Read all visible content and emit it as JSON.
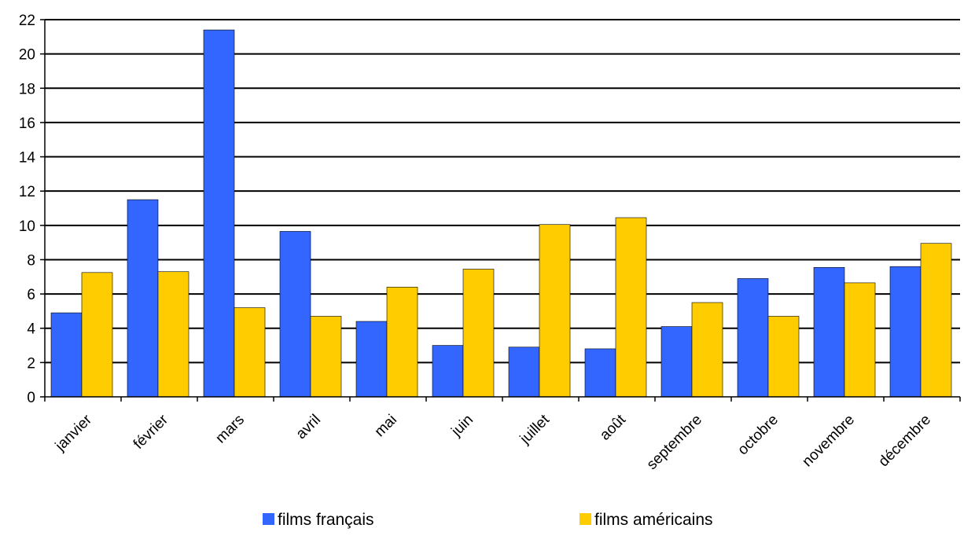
{
  "chart_data": {
    "type": "bar",
    "categories": [
      "janvier",
      "février",
      "mars",
      "avril",
      "mai",
      "juin",
      "juillet",
      "août",
      "septembre",
      "octobre",
      "novembre",
      "décembre"
    ],
    "series": [
      {
        "name": "films français",
        "color": "#3366ff",
        "values": [
          4.9,
          11.5,
          21.4,
          9.65,
          4.4,
          3.0,
          2.9,
          2.8,
          4.1,
          6.9,
          7.55,
          7.6
        ]
      },
      {
        "name": "films américains",
        "color": "#ffcc00",
        "values": [
          7.25,
          7.3,
          5.2,
          4.7,
          6.4,
          7.45,
          10.05,
          10.45,
          5.5,
          4.7,
          6.65,
          8.95
        ]
      }
    ],
    "title": "",
    "xlabel": "",
    "ylabel": "",
    "ylim": [
      0,
      22
    ],
    "yticks": [
      "0",
      "2",
      "4",
      "6",
      "8",
      "10",
      "12",
      "14",
      "16",
      "18",
      "20",
      "22"
    ],
    "grid": true,
    "legend": "bottom"
  }
}
